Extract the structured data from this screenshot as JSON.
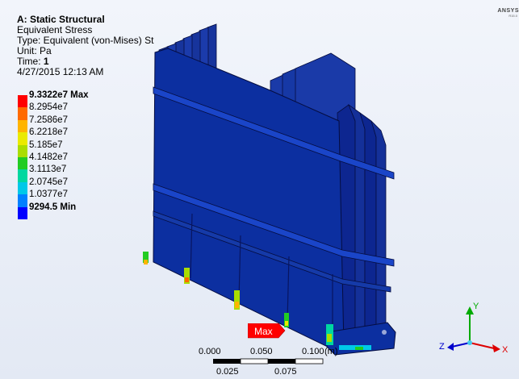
{
  "header": {
    "title": "A: Static Structural",
    "result": "Equivalent Stress",
    "type_line": "Type: Equivalent (von-Mises) St",
    "unit_line": "Unit: Pa",
    "time_label": "Time:",
    "time_value": "1",
    "timestamp": "4/27/2015 12:13 AM"
  },
  "legend": [
    {
      "label": "9.3322e7 Max",
      "color": "#ff0000",
      "bold": true
    },
    {
      "label": "8.2954e7",
      "color": "#ff6a00",
      "bold": false
    },
    {
      "label": "7.2586e7",
      "color": "#ffb400",
      "bold": false
    },
    {
      "label": "6.2218e7",
      "color": "#eaea00",
      "bold": false
    },
    {
      "label": "5.185e7",
      "color": "#aadd00",
      "bold": false
    },
    {
      "label": "4.1482e7",
      "color": "#22cc22",
      "bold": false
    },
    {
      "label": "3.1113e7",
      "color": "#00d7a0",
      "bold": false
    },
    {
      "label": "2.0745e7",
      "color": "#00c8e8",
      "bold": false
    },
    {
      "label": "1.0377e7",
      "color": "#0080ff",
      "bold": false
    },
    {
      "label": "9294.5 Min",
      "color": "#0000ff",
      "bold": true
    }
  ],
  "logo": {
    "text": "ANSYS",
    "sub": "R15.0"
  },
  "max_marker": {
    "label": "Max",
    "color": "#ff0000"
  },
  "scale_bar": {
    "top_ticks": [
      "0.000",
      "0.050",
      "0.100"
    ],
    "bottom_ticks": [
      "0.025",
      "0.075"
    ],
    "unit_fragment": "(m)"
  },
  "triad": {
    "x": "X",
    "y": "Y",
    "z": "Z"
  },
  "colors": {
    "model_face": "#0c2fa0",
    "model_dark": "#0a1d73",
    "model_light": "#1d47d0",
    "edge": "#000033"
  }
}
